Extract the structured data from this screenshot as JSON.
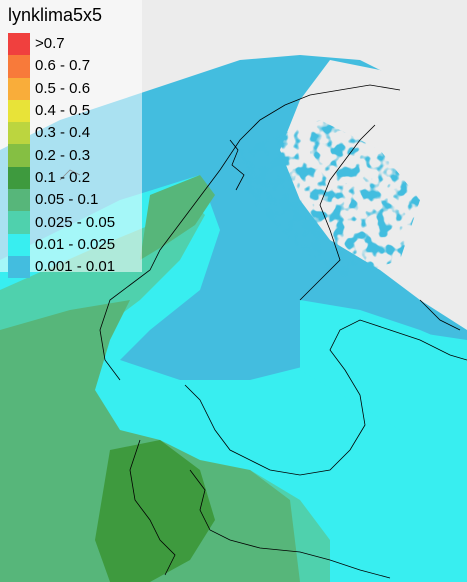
{
  "map": {
    "title": "lynklima5x5",
    "background_color": "#ececec",
    "coastline_color": "#000000",
    "legend": [
      {
        "label": ">0.7",
        "color": "#f0403e"
      },
      {
        "label": "0.6 - 0.7",
        "color": "#f87a3a"
      },
      {
        "label": "0.5 - 0.6",
        "color": "#f9ad3a"
      },
      {
        "label": "0.4 - 0.5",
        "color": "#e8e338"
      },
      {
        "label": "0.3 - 0.4",
        "color": "#bcd53f"
      },
      {
        "label": "0.2 - 0.3",
        "color": "#85bf43"
      },
      {
        "label": "0.1 - 0.2",
        "color": "#3e9a3e"
      },
      {
        "label": "0.05 - 0.1",
        "color": "#57b67a"
      },
      {
        "label": "0.025 - 0.05",
        "color": "#4fd1ad"
      },
      {
        "label": "0.01 - 0.025",
        "color": "#38eef0"
      },
      {
        "label": "0.001 - 0.01",
        "color": "#43bddf"
      }
    ]
  }
}
